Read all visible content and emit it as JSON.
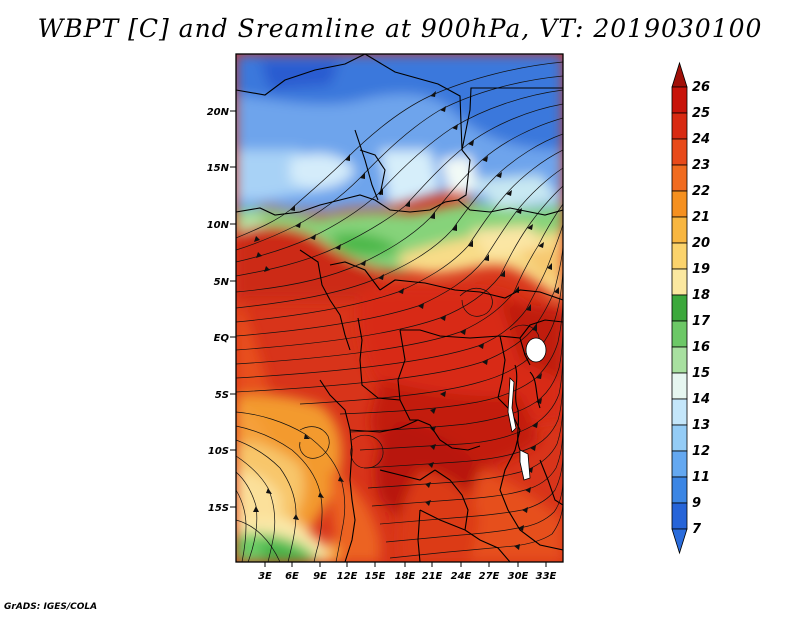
{
  "title": "WBPT [C] and Sreamline at 900hPa, VT: 2019030100",
  "credit": "GrADS: IGES/COLA",
  "map": {
    "lat_labels": [
      "20N",
      "15N",
      "10N",
      "5N",
      "EQ",
      "5S",
      "10S",
      "15S"
    ],
    "lon_labels": [
      "3E",
      "6E",
      "9E",
      "12E",
      "15E",
      "18E",
      "21E",
      "24E",
      "27E",
      "30E",
      "33E"
    ]
  },
  "colorbar": {
    "labels": [
      "26",
      "25",
      "24",
      "23",
      "22",
      "21",
      "20",
      "19",
      "18",
      "17",
      "16",
      "15",
      "14",
      "13",
      "12",
      "11",
      "9",
      "7"
    ],
    "colors": [
      "#c8140a",
      "#d82a12",
      "#e84a1a",
      "#f06b1f",
      "#f5901f",
      "#f8b640",
      "#fbd36c",
      "#fbe8a0",
      "#3ca83c",
      "#6cc866",
      "#a8e0a0",
      "#e6f6f0",
      "#c4e6fa",
      "#94ccf6",
      "#64a8f0",
      "#3c86e4",
      "#2664d8"
    ],
    "top_color": "#a01008",
    "bottom_color": "#2a6cdc"
  }
}
